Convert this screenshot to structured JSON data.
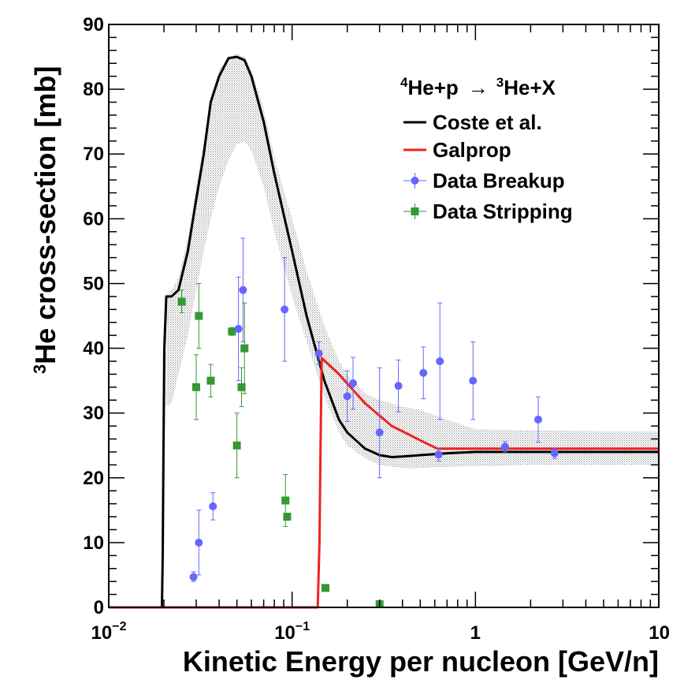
{
  "chart_data": {
    "type": "scatter",
    "xscale": "log",
    "xlim": [
      0.01,
      10
    ],
    "ylim": [
      0,
      90
    ],
    "xlabel": "Kinetic Energy per nucleon [GeV/n]",
    "ylabel_sup": "3",
    "ylabel": "He cross-section [mb]",
    "x_tick_labels": [
      {
        "value": 0.01,
        "base": "10",
        "exp": "−2"
      },
      {
        "value": 0.1,
        "base": "10",
        "exp": "−1"
      },
      {
        "value": 1,
        "base": "1",
        "exp": ""
      },
      {
        "value": 10,
        "base": "10",
        "exp": ""
      }
    ],
    "y_ticks": [
      0,
      10,
      20,
      30,
      40,
      50,
      60,
      70,
      80,
      90
    ],
    "legend": {
      "position": "top-right",
      "header_sup1": "4",
      "header_part1": "He+p",
      "header_arrow": "→",
      "header_sup2": "3",
      "header_part2": "He+X",
      "entries": [
        "Coste et al.",
        "Galprop",
        "Data Breakup",
        "Data Stripping"
      ]
    },
    "colors": {
      "coste": "#000000",
      "galprop": "#ee2222",
      "breakup": "#6666ff",
      "stripping": "#339933",
      "band": "#999999"
    },
    "series": [
      {
        "name": "Coste et al.",
        "style": "line",
        "x": [
          0.01,
          0.0195,
          0.0197,
          0.0199,
          0.0201,
          0.0206,
          0.022,
          0.024,
          0.027,
          0.03,
          0.033,
          0.036,
          0.04,
          0.045,
          0.05,
          0.055,
          0.06,
          0.07,
          0.08,
          0.1,
          0.12,
          0.15,
          0.18,
          0.2,
          0.25,
          0.3,
          0.35,
          0.4,
          0.5,
          0.7,
          1,
          2,
          5,
          10
        ],
        "y": [
          0,
          0,
          8,
          25,
          40,
          48,
          48,
          49,
          55,
          63,
          70,
          78,
          82,
          84.8,
          85,
          84.5,
          82,
          75,
          67,
          55,
          45,
          35,
          29,
          27,
          24.5,
          23.5,
          23.2,
          23.3,
          23.5,
          23.8,
          24,
          24,
          24,
          24
        ]
      },
      {
        "name": "Coste band upper",
        "style": "band",
        "x": [
          0.0205,
          0.022,
          0.024,
          0.027,
          0.03,
          0.033,
          0.036,
          0.04,
          0.045,
          0.05,
          0.055,
          0.06,
          0.07,
          0.08,
          0.1,
          0.12,
          0.15,
          0.18,
          0.2,
          0.25,
          0.3,
          0.4,
          0.5,
          0.7,
          1,
          2,
          5,
          10
        ],
        "y": [
          48,
          49,
          51,
          57,
          65,
          72,
          79,
          83,
          85,
          85.5,
          85,
          83,
          77,
          69.5,
          60,
          52,
          43.5,
          38,
          36,
          33,
          32,
          31,
          30.5,
          29,
          27.5,
          27.3,
          27.2,
          27.2
        ]
      },
      {
        "name": "Coste band lower",
        "style": "band",
        "x": [
          0.0205,
          0.022,
          0.024,
          0.027,
          0.03,
          0.033,
          0.036,
          0.04,
          0.045,
          0.05,
          0.055,
          0.06,
          0.07,
          0.08,
          0.1,
          0.12,
          0.15,
          0.18,
          0.2,
          0.25,
          0.3,
          0.4,
          0.5,
          0.7,
          1,
          2,
          5,
          10
        ],
        "y": [
          31,
          31.5,
          36,
          42,
          49,
          55,
          60,
          65,
          69,
          71.5,
          72,
          70.5,
          65,
          58,
          48,
          41,
          32.5,
          27,
          25,
          23,
          22,
          21.5,
          21.5,
          21.7,
          21.8,
          22,
          22,
          22
        ]
      },
      {
        "name": "Galprop",
        "style": "line",
        "x": [
          0.01,
          0.138,
          0.141,
          0.143,
          0.145,
          0.18,
          0.25,
          0.35,
          0.5,
          0.62,
          1,
          2,
          5,
          10
        ],
        "y": [
          0,
          0,
          10,
          25,
          38.5,
          36,
          31.5,
          28,
          25.8,
          24.5,
          24.5,
          24.5,
          24.5,
          24.5
        ]
      },
      {
        "name": "Data Breakup",
        "style": "points",
        "marker": "circle",
        "points": [
          {
            "x": 0.029,
            "y": 4.7,
            "lo": 4,
            "hi": 5.5
          },
          {
            "x": 0.031,
            "y": 10,
            "lo": 5,
            "hi": 15
          },
          {
            "x": 0.037,
            "y": 15.6,
            "lo": 13.5,
            "hi": 17.7
          },
          {
            "x": 0.051,
            "y": 43,
            "lo": 35,
            "hi": 51
          },
          {
            "x": 0.054,
            "y": 49,
            "lo": 41,
            "hi": 57
          },
          {
            "x": 0.091,
            "y": 46,
            "lo": 38,
            "hi": 54
          },
          {
            "x": 0.14,
            "y": 39.2,
            "lo": 37.5,
            "hi": 41
          },
          {
            "x": 0.2,
            "y": 32.6,
            "lo": 28.7,
            "hi": 36.5
          },
          {
            "x": 0.215,
            "y": 34.6,
            "lo": 30.6,
            "hi": 38.6
          },
          {
            "x": 0.3,
            "y": 27,
            "lo": 20,
            "hi": 37
          },
          {
            "x": 0.38,
            "y": 34.2,
            "lo": 30.2,
            "hi": 38.2
          },
          {
            "x": 0.52,
            "y": 36.2,
            "lo": 32.2,
            "hi": 40.2
          },
          {
            "x": 0.63,
            "y": 23.6,
            "lo": 22.6,
            "hi": 24.6
          },
          {
            "x": 0.64,
            "y": 38,
            "lo": 29,
            "hi": 47
          },
          {
            "x": 0.97,
            "y": 35,
            "lo": 29,
            "hi": 41
          },
          {
            "x": 1.45,
            "y": 24.8,
            "lo": 24,
            "hi": 25.6
          },
          {
            "x": 2.2,
            "y": 29,
            "lo": 25.5,
            "hi": 32.5
          },
          {
            "x": 2.7,
            "y": 23.8,
            "lo": 23,
            "hi": 24.6
          }
        ]
      },
      {
        "name": "Data Stripping",
        "style": "points",
        "marker": "square",
        "points": [
          {
            "x": 0.025,
            "y": 47.2,
            "lo": 45.5,
            "hi": 49
          },
          {
            "x": 0.03,
            "y": 34,
            "lo": 29,
            "hi": 39
          },
          {
            "x": 0.031,
            "y": 45,
            "lo": 40,
            "hi": 50
          },
          {
            "x": 0.036,
            "y": 35,
            "lo": 32.5,
            "hi": 37.5
          },
          {
            "x": 0.047,
            "y": 42.6,
            "lo": 42,
            "hi": 43.2
          },
          {
            "x": 0.05,
            "y": 25,
            "lo": 20,
            "hi": 30
          },
          {
            "x": 0.053,
            "y": 34,
            "lo": 31,
            "hi": 37
          },
          {
            "x": 0.055,
            "y": 40,
            "lo": 33,
            "hi": 47
          },
          {
            "x": 0.092,
            "y": 16.5,
            "lo": 12.5,
            "hi": 20.5
          },
          {
            "x": 0.094,
            "y": 14,
            "lo": 13.5,
            "hi": 14.5
          },
          {
            "x": 0.152,
            "y": 3,
            "lo": 3,
            "hi": 3
          },
          {
            "x": 0.3,
            "y": 0.5,
            "lo": 0.5,
            "hi": 0.5
          }
        ]
      }
    ]
  }
}
